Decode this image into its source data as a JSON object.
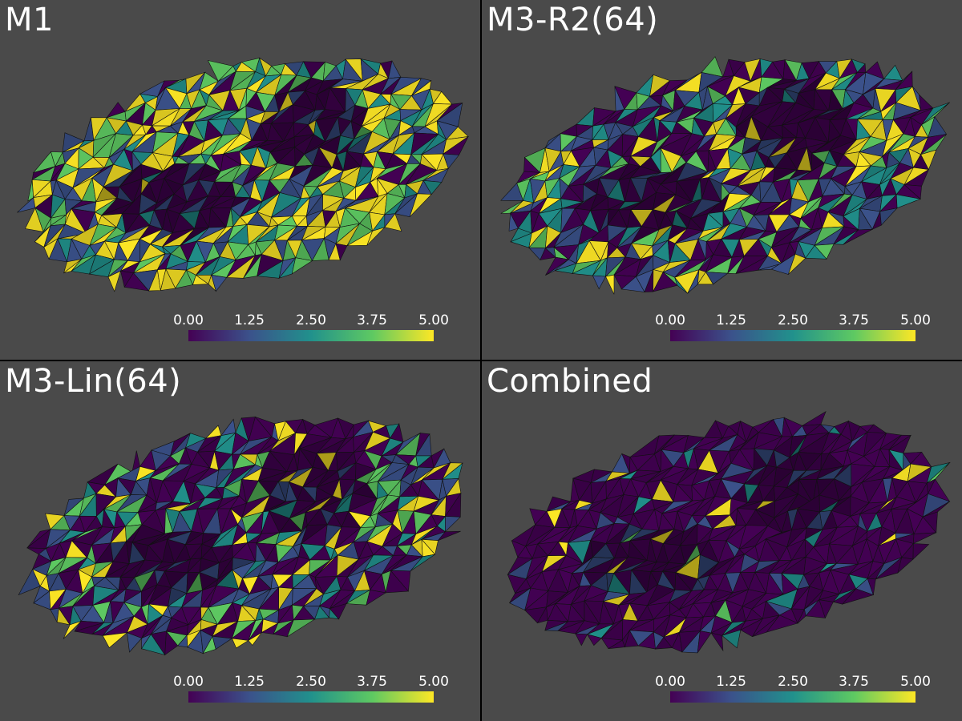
{
  "panels": [
    {
      "title": "M1",
      "palette_weights": [
        0.12,
        0.18,
        0.15,
        0.2,
        0.35
      ]
    },
    {
      "title": "M3-R2(64)",
      "palette_weights": [
        0.38,
        0.22,
        0.12,
        0.1,
        0.18
      ]
    },
    {
      "title": "M3-Lin(64)",
      "palette_weights": [
        0.4,
        0.2,
        0.12,
        0.1,
        0.18
      ]
    },
    {
      "title": "Combined",
      "palette_weights": [
        0.82,
        0.1,
        0.04,
        0.01,
        0.03
      ]
    }
  ],
  "colorbar": {
    "ticks": [
      "0.00",
      "1.25",
      "2.50",
      "3.75",
      "5.00"
    ],
    "colormap": [
      "#440154",
      "#3b528b",
      "#21918c",
      "#5ec962",
      "#fde725"
    ]
  },
  "colors": {
    "panel_background": "#4a4a4a",
    "divider": "#000000",
    "title_text": "#ffffff"
  }
}
